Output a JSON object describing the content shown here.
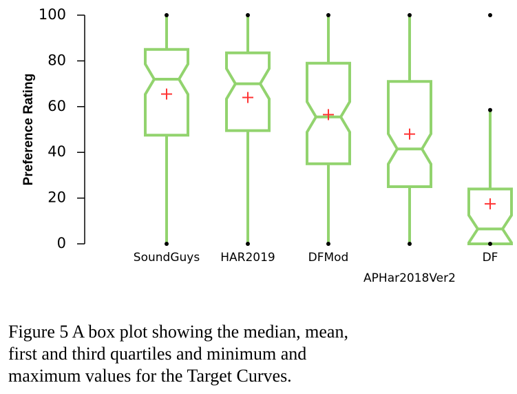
{
  "chart_data": {
    "type": "box",
    "ylabel": "Preference Rating",
    "ylim": [
      0,
      100
    ],
    "yticks": [
      0,
      20,
      40,
      60,
      80,
      100
    ],
    "categories": [
      "SoundGuys",
      "HAR2019",
      "DFMod",
      "APHar2018Ver2",
      "DF"
    ],
    "boxes": [
      {
        "min": 0,
        "q1": 47.5,
        "median": 72,
        "q3": 85,
        "max": 100,
        "mean": 65.5,
        "outliers": []
      },
      {
        "min": 0,
        "q1": 49.5,
        "median": 70,
        "q3": 83.5,
        "max": 100,
        "mean": 64,
        "outliers": []
      },
      {
        "min": 0,
        "q1": 35,
        "median": 55.5,
        "q3": 79,
        "max": 100,
        "mean": 56.5,
        "outliers": []
      },
      {
        "min": 0,
        "q1": 25,
        "median": 41.5,
        "q3": 71,
        "max": 100,
        "mean": 48,
        "outliers": []
      },
      {
        "min": 0,
        "q1": 0,
        "median": 6.5,
        "q3": 24,
        "max": 58.5,
        "mean": 17.5,
        "outliers": [
          100
        ]
      }
    ],
    "colors": {
      "box": "#92d36e",
      "mean_marker": "#ff3333",
      "endpoint": "#000000"
    },
    "grid": false
  },
  "caption": {
    "lines": [
      "Figure 5 A box plot showing the median, mean,",
      "first and third quartiles and minimum and",
      "maximum values for the Target Curves."
    ]
  }
}
